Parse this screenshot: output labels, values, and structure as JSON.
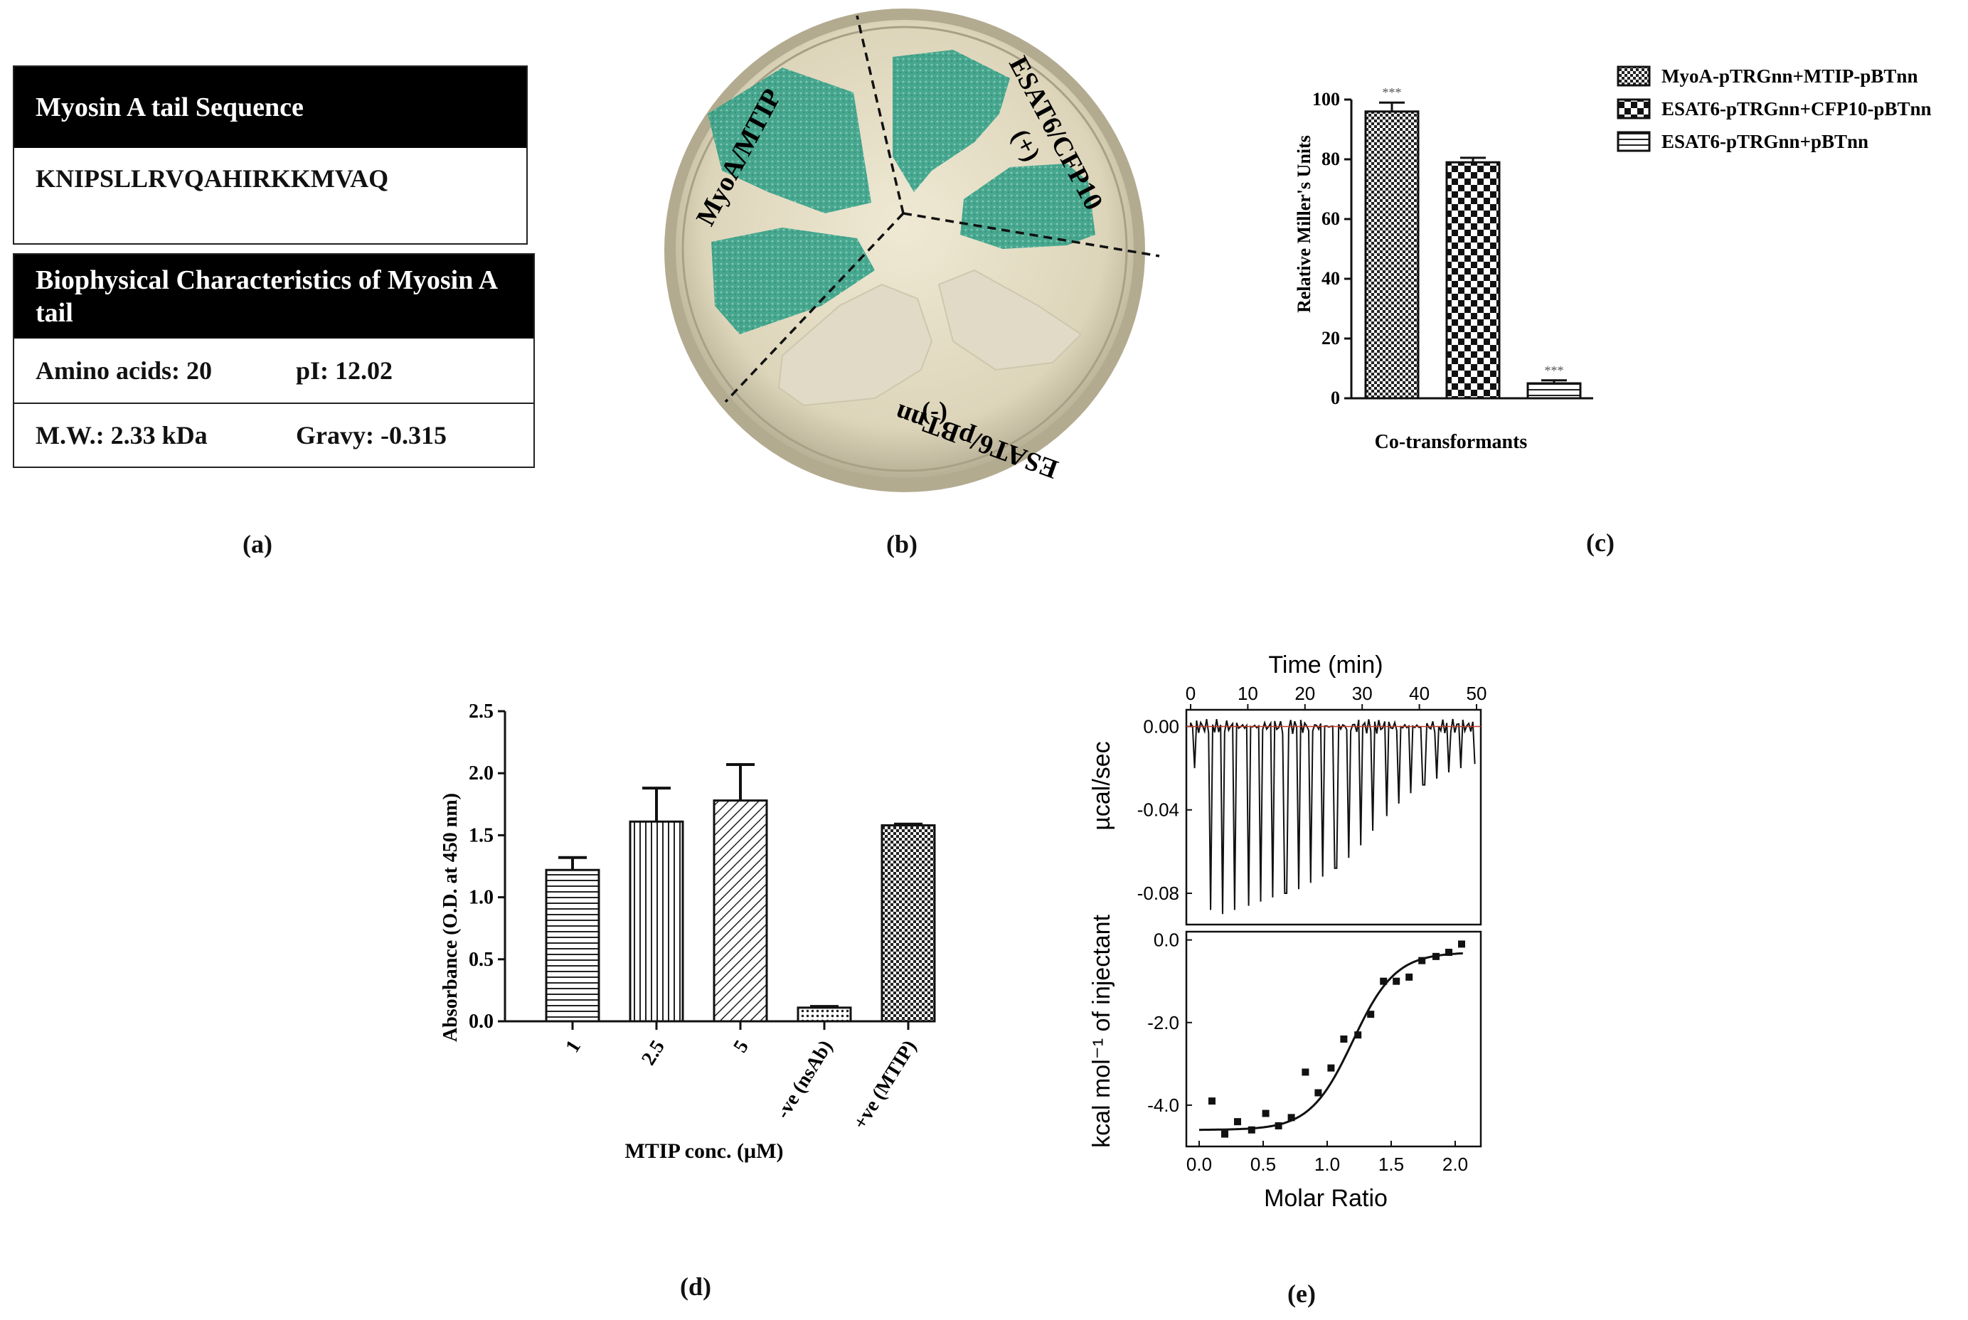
{
  "panel_a": {
    "caption": "(a)",
    "sequence_header": "Myosin A tail Sequence",
    "sequence": "KNIPSLLRVQAHIRKKMVAQ",
    "biophys_header": "Biophysical Characteristics of Myosin A tail",
    "amino_acids": "Amino acids: 20",
    "pi": "pI: 12.02",
    "mw": "M.W.: 2.33 kDa",
    "gravy": "Gravy: -0.315"
  },
  "panel_b": {
    "caption": "(b)",
    "label_myoa": "MyoA/MTIP",
    "label_esat_cfp": "ESAT6/CFP10",
    "label_plus": "(+)",
    "label_minus": "(-)",
    "label_esat_pbt": "ESAT6/pBTnn",
    "colors": {
      "plate": "#d9d2b6",
      "rim": "#a8a189",
      "blue": "#2f9e86",
      "white": "#ddd6c2"
    }
  },
  "chart_data": [
    {
      "id": "c",
      "caption": "(c)",
      "type": "bar",
      "ylabel": "Relative Miller's Units",
      "xlabel": "Co-transformants",
      "ylim": [
        0,
        100
      ],
      "yticks": [
        "0",
        "20",
        "40",
        "60",
        "80",
        "100"
      ],
      "series": [
        {
          "name": "MyoA-pTRGnn+MTIP-pBTnn",
          "value": 96,
          "error": 3,
          "sig": "***",
          "pattern": "checker-small"
        },
        {
          "name": "ESAT6-pTRGnn+CFP10-pBTnn",
          "value": 79,
          "error": 1.5,
          "sig": "",
          "pattern": "checker-large"
        },
        {
          "name": "ESAT6-pTRGnn+pBTnn",
          "value": 5,
          "error": 1,
          "sig": "***",
          "pattern": "hlines"
        }
      ]
    },
    {
      "id": "d",
      "caption": "(d)",
      "type": "bar",
      "ylabel": "Absorbance (O.D. at 450 nm)",
      "xlabel": "MTIP conc. (µM)",
      "ylim": [
        0,
        2.5
      ],
      "yticks": [
        "0.0",
        "0.5",
        "1.0",
        "1.5",
        "2.0",
        "2.5"
      ],
      "categories": [
        "1",
        "2.5",
        "5",
        "-ve (nsAb)",
        "+ve (MTIP)"
      ],
      "values": [
        1.22,
        1.61,
        1.78,
        0.11,
        1.58
      ],
      "errors": [
        0.1,
        0.27,
        0.29,
        0.01,
        0.01
      ],
      "patterns": [
        "hlines",
        "vlines",
        "diag",
        "dots",
        "checker-small"
      ]
    },
    {
      "id": "e",
      "caption": "(e)",
      "type": "line",
      "top": {
        "xlabel": "Time (min)",
        "xticks": [
          "0",
          "10",
          "20",
          "30",
          "40",
          "50"
        ],
        "xlim": [
          0,
          50
        ],
        "ylabel": "µcal/sec",
        "yticks": [
          "0.00",
          "-0.04",
          "-0.08"
        ],
        "ylim": [
          -0.095,
          0.008
        ],
        "peak_times": [
          0.6,
          3.4,
          5.6,
          7.8,
          10.0,
          12.2,
          14.4,
          16.6,
          18.8,
          21.0,
          23.2,
          25.4,
          27.6,
          29.8,
          32.0,
          34.2,
          36.4,
          38.6,
          40.8,
          43.0,
          45.2,
          47.4,
          49.6
        ],
        "peak_depths": [
          -0.02,
          -0.088,
          -0.09,
          -0.088,
          -0.086,
          -0.084,
          -0.082,
          -0.08,
          -0.078,
          -0.075,
          -0.072,
          -0.068,
          -0.063,
          -0.057,
          -0.05,
          -0.043,
          -0.037,
          -0.032,
          -0.028,
          -0.025,
          -0.022,
          -0.02,
          -0.018
        ]
      },
      "bottom": {
        "xlabel": "Molar Ratio",
        "xticks": [
          "0.0",
          "0.5",
          "1.0",
          "1.5",
          "2.0"
        ],
        "xlim": [
          -0.1,
          2.2
        ],
        "ylabel": "kcal mol⁻¹ of injectant",
        "yticks": [
          "0.0",
          "-2.0",
          "-4.0"
        ],
        "ylim": [
          -5.0,
          0.2
        ],
        "points_x": [
          0.1,
          0.2,
          0.3,
          0.41,
          0.52,
          0.62,
          0.72,
          0.83,
          0.93,
          1.03,
          1.13,
          1.24,
          1.34,
          1.44,
          1.54,
          1.64,
          1.74,
          1.85,
          1.95,
          2.05
        ],
        "points_y": [
          -3.9,
          -4.7,
          -4.4,
          -4.6,
          -4.2,
          -4.5,
          -4.3,
          -3.2,
          -3.7,
          -3.1,
          -2.4,
          -2.3,
          -1.8,
          -1.0,
          -1.0,
          -0.9,
          -0.5,
          -0.4,
          -0.3,
          -0.1
        ]
      }
    }
  ]
}
